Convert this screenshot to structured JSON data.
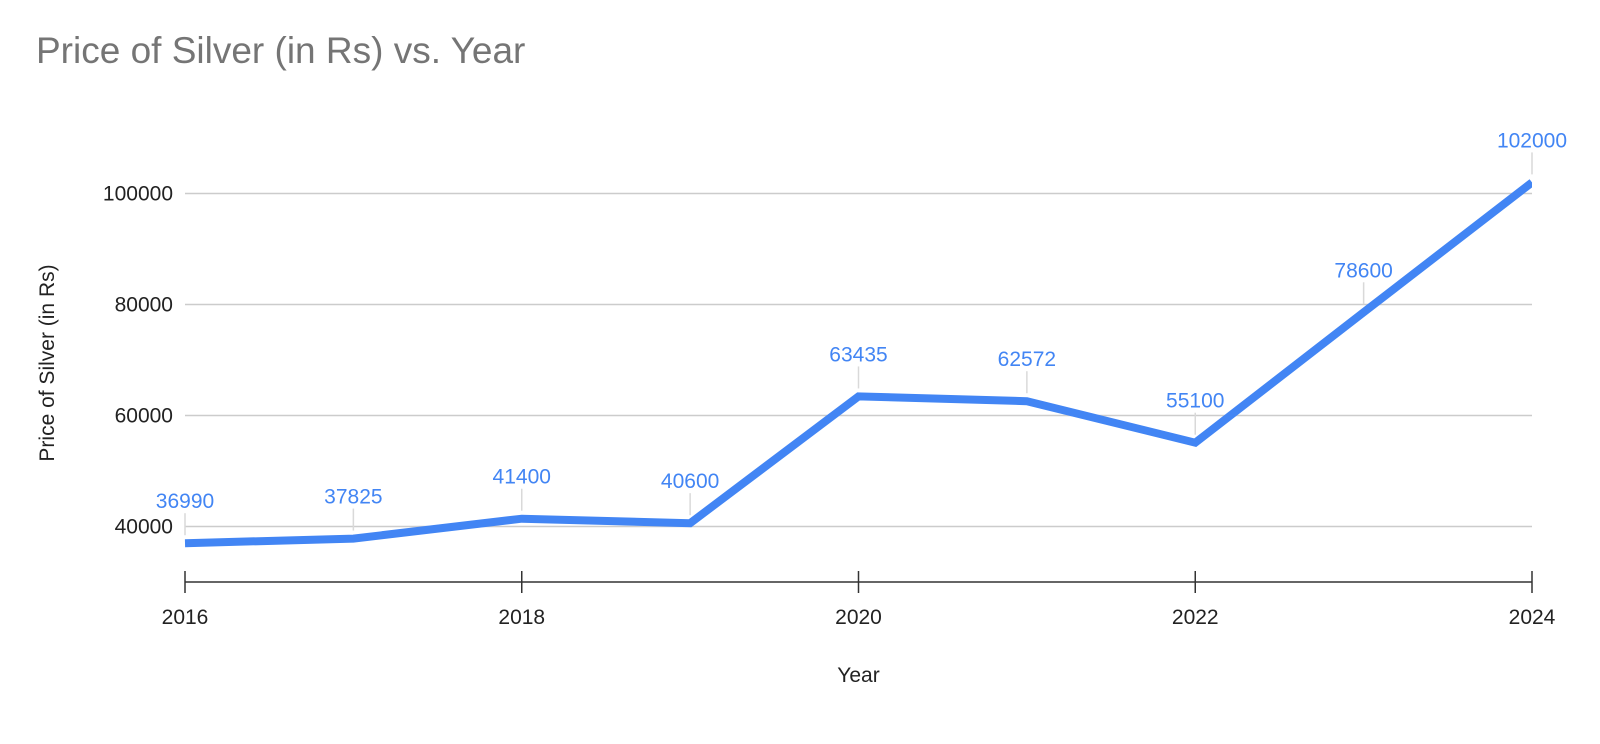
{
  "chart_data": {
    "type": "line",
    "title": "Price of Silver (in Rs) vs. Year",
    "xlabel": "Year",
    "ylabel": "Price of Silver (in Rs)",
    "x": [
      2016,
      2017,
      2018,
      2019,
      2020,
      2021,
      2022,
      2023,
      2024
    ],
    "series": [
      {
        "values": [
          36990,
          37825,
          41400,
          40600,
          63435,
          62572,
          55100,
          78600,
          102000
        ],
        "color": "#4285f4"
      }
    ],
    "data_labels": [
      "36990",
      "37825",
      "41400",
      "40600",
      "63435",
      "62572",
      "55100",
      "78600",
      "102000"
    ],
    "x_ticks": [
      2016,
      2018,
      2020,
      2022,
      2024
    ],
    "x_tick_labels": [
      "2016",
      "2018",
      "2020",
      "2022",
      "2024"
    ],
    "y_ticks": [
      40000,
      60000,
      80000,
      100000
    ],
    "y_tick_labels": [
      "40000",
      "60000",
      "80000",
      "100000"
    ],
    "xlim": [
      2016,
      2024
    ],
    "ylim": [
      30000,
      110000
    ],
    "grid": true,
    "legend": "none"
  }
}
